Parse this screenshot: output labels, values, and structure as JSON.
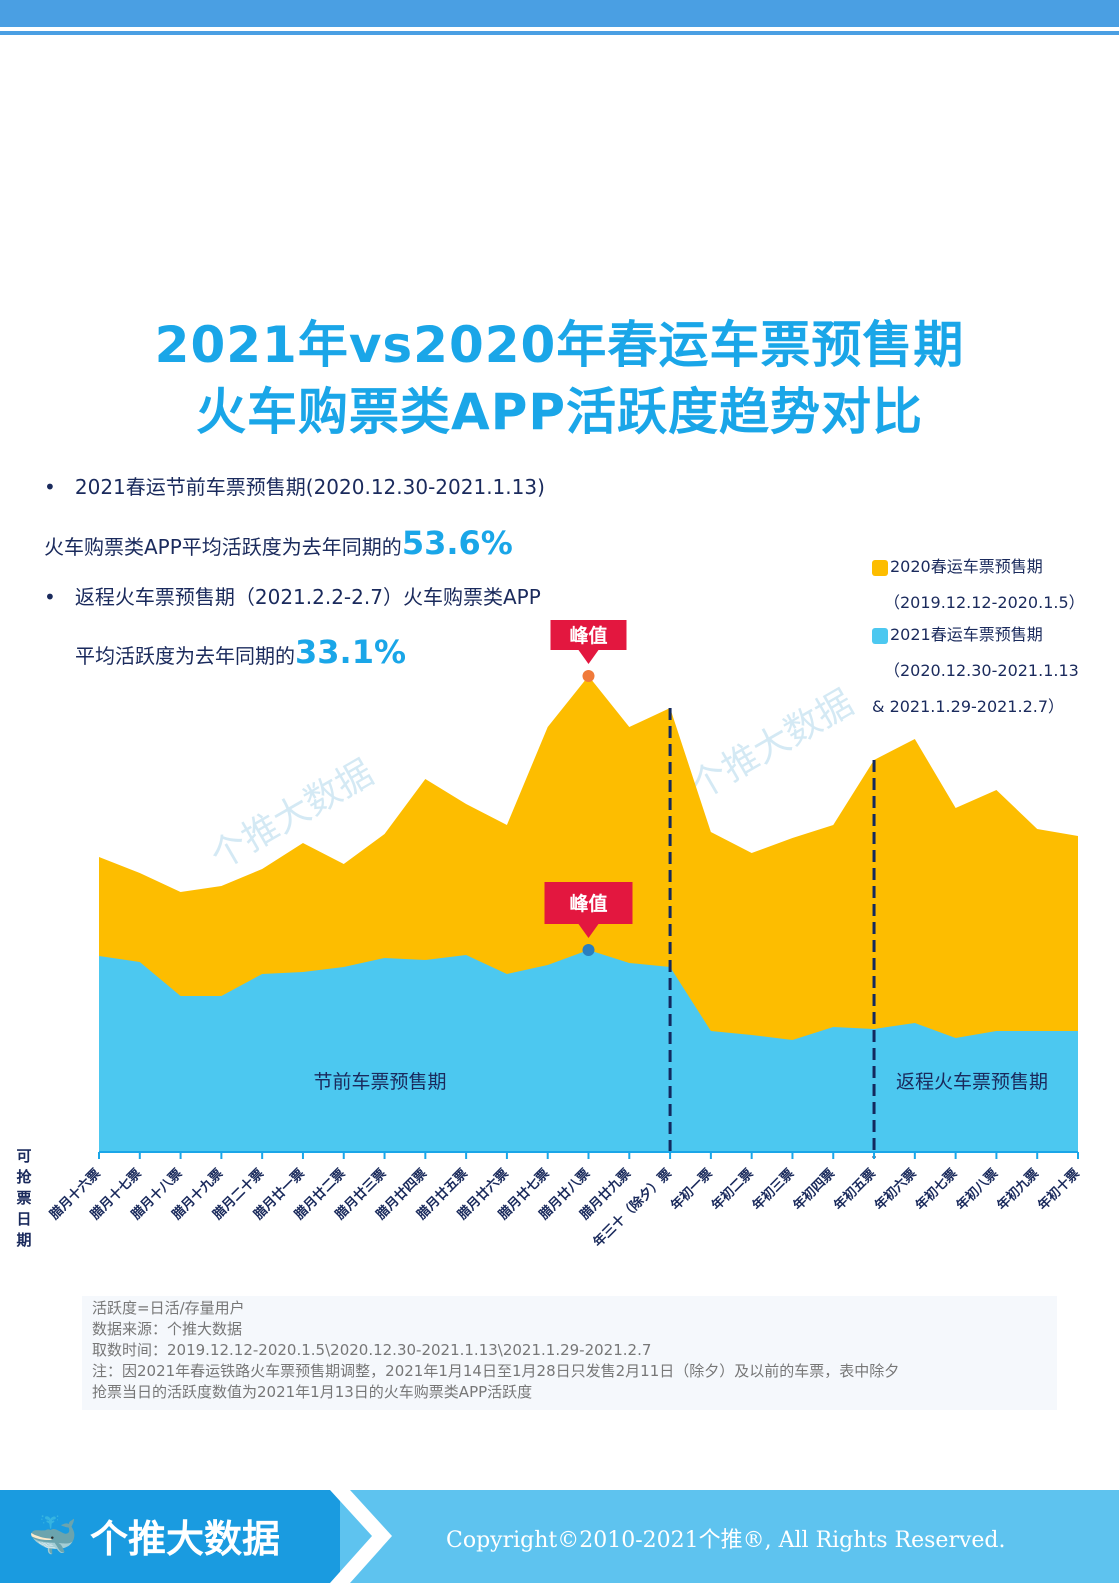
{
  "header": {
    "title_line1": "2021年vs2020年春运车票预售期",
    "title_line2": "火车购票类APP活跃度趋势对比"
  },
  "bullets": {
    "b1": "2021春运节前车票预售期(2020.12.30-2021.1.13)",
    "b1_line2": "火车购票类APP平均活跃度为去年同期的",
    "b1_value": "53.6%",
    "b2": "返程火车票预售期（2021.2.2-2.7）火车购票类APP",
    "b2_line2": "平均活跃度为去年同期的",
    "b2_value": "33.1%"
  },
  "legend": [
    {
      "label": "2020春运车票预售期",
      "sub": [
        "（2019.12.12-2020.1.5）"
      ],
      "color": "#fdbd00"
    },
    {
      "label": "2021春运车票预售期",
      "sub": [
        "（2020.12.30-2021.1.13",
        "& 2021.1.29-2021.2.7）"
      ],
      "color": "#4cc8f0"
    }
  ],
  "watermark": "个推大数据",
  "chart_data": {
    "type": "area",
    "xlabel": "可抢票日期",
    "ylabel": "",
    "ylim": [
      0,
      500
    ],
    "categories": [
      "腊月十六票",
      "腊月十七票",
      "腊月十八票",
      "腊月十九票",
      "腊月二十票",
      "腊月廿一票",
      "腊月廿二票",
      "腊月廿三票",
      "腊月廿四票",
      "腊月廿五票",
      "腊月廿六票",
      "腊月廿七票",
      "腊月廿八票",
      "腊月廿九票",
      "年三十（除夕）票",
      "年初一票",
      "年初二票",
      "年初三票",
      "年初四票",
      "年初五票",
      "年初六票",
      "年初七票",
      "年初八票",
      "年初九票",
      "年初十票"
    ],
    "series": [
      {
        "name": "2020春运车票预售期",
        "color": "#fdbd00",
        "values": [
          295,
          279,
          260,
          266,
          283,
          309,
          288,
          318,
          373,
          348,
          327,
          425,
          476,
          425,
          444,
          320,
          299,
          314,
          327,
          392,
          413,
          344,
          362,
          323,
          316
        ]
      },
      {
        "name": "2021春运车票预售期",
        "color": "#4cc8f0",
        "values": [
          196,
          190,
          156,
          156,
          178,
          180,
          185,
          194,
          192,
          197,
          178,
          187,
          202,
          189,
          185,
          121,
          117,
          112,
          125,
          123,
          129,
          114,
          121,
          121,
          121
        ]
      }
    ],
    "annotations": [
      {
        "text": "峰值",
        "series": 0,
        "index": 12
      },
      {
        "text": "峰值",
        "series": 1,
        "index": 12
      }
    ],
    "dividers": [
      {
        "index": 14
      },
      {
        "index": 19
      }
    ],
    "region_labels": [
      "节前车票预售期",
      "返程火车票预售期"
    ]
  },
  "footnote": [
    "活跃度=日活/存量用户",
    "数据来源：个推大数据",
    "取数时间：2019.12.12-2020.1.5\\2020.12.30-2021.1.13\\2021.1.29-2021.2.7",
    "注：因2021年春运铁路火车票预售期调整，2021年1月14日至1月28日只发售2月11日（除夕）及以前的车票，表中除夕",
    "抢票当日的活跃度数值为2021年1月13日的火车购票类APP活跃度"
  ],
  "footer": {
    "brand": "个推大数据",
    "copyright": "Copyright©2010-2021个推®, All Rights Reserved."
  }
}
